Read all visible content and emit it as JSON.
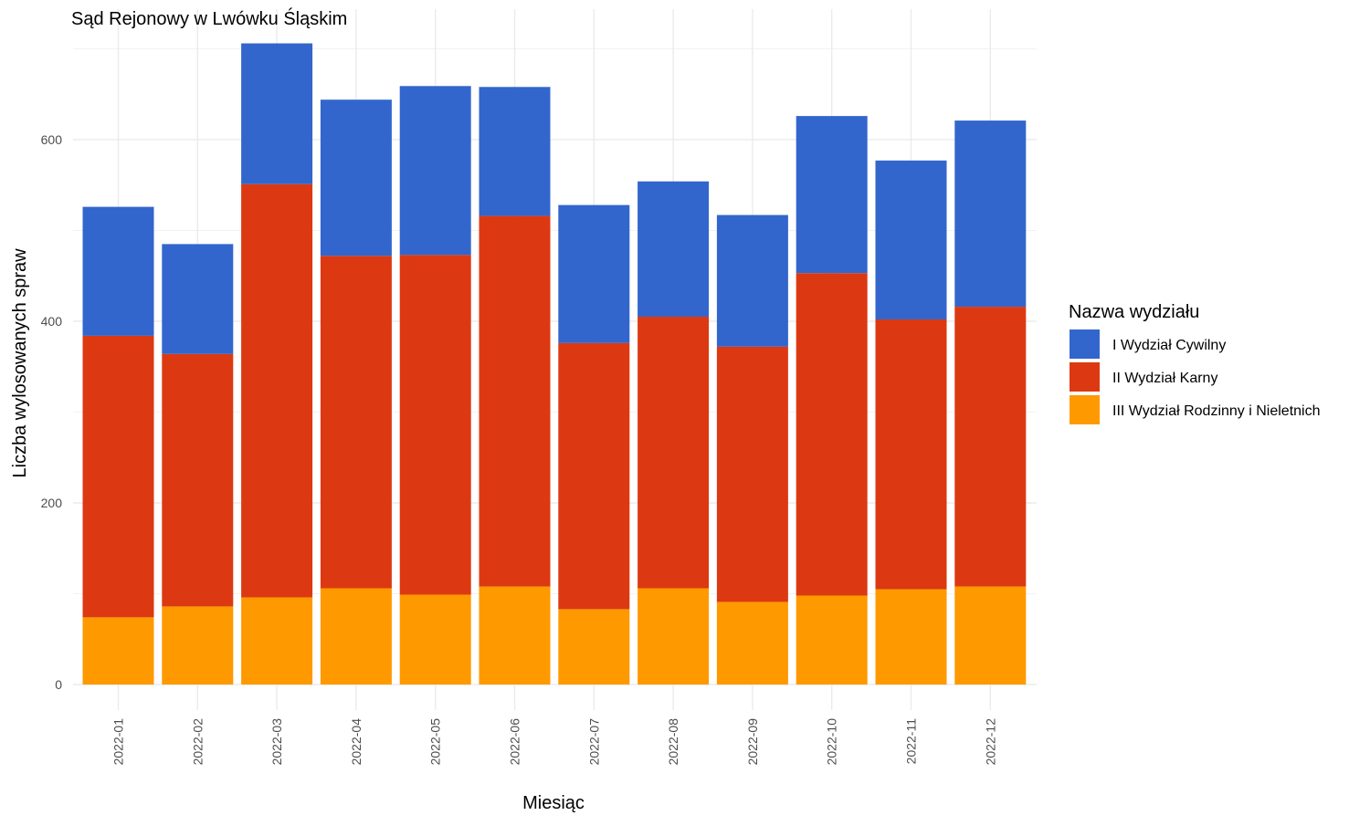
{
  "chart_data": {
    "type": "bar",
    "stacked": true,
    "title": "Sąd Rejonowy w Lwówku Śląskim",
    "xlabel": "Miesiąc",
    "ylabel": "Liczba wylosowanych spraw",
    "ylim": [
      0,
      710
    ],
    "yticks": [
      0,
      200,
      400,
      600
    ],
    "grid": true,
    "legend_position": "right",
    "legend_title": "Nazwa wydziału",
    "categories": [
      "2022-01",
      "2022-02",
      "2022-03",
      "2022-04",
      "2022-05",
      "2022-06",
      "2022-07",
      "2022-08",
      "2022-09",
      "2022-10",
      "2022-11",
      "2022-12"
    ],
    "series": [
      {
        "name": "III Wydział Rodzinny i Nieletnich",
        "color": "#FF9900",
        "values": [
          74,
          86,
          96,
          106,
          99,
          108,
          83,
          106,
          91,
          98,
          105,
          108
        ]
      },
      {
        "name": "II Wydział Karny",
        "color": "#DC3912",
        "values": [
          310,
          278,
          455,
          366,
          374,
          408,
          293,
          299,
          281,
          355,
          297,
          308
        ]
      },
      {
        "name": "I Wydział Cywilny",
        "color": "#3366CC",
        "values": [
          142,
          121,
          155,
          172,
          186,
          142,
          152,
          149,
          145,
          173,
          175,
          205
        ]
      }
    ],
    "legend_order": [
      "I Wydział Cywilny",
      "II Wydział Karny",
      "III Wydział Rodzinny i Nieletnich"
    ]
  }
}
